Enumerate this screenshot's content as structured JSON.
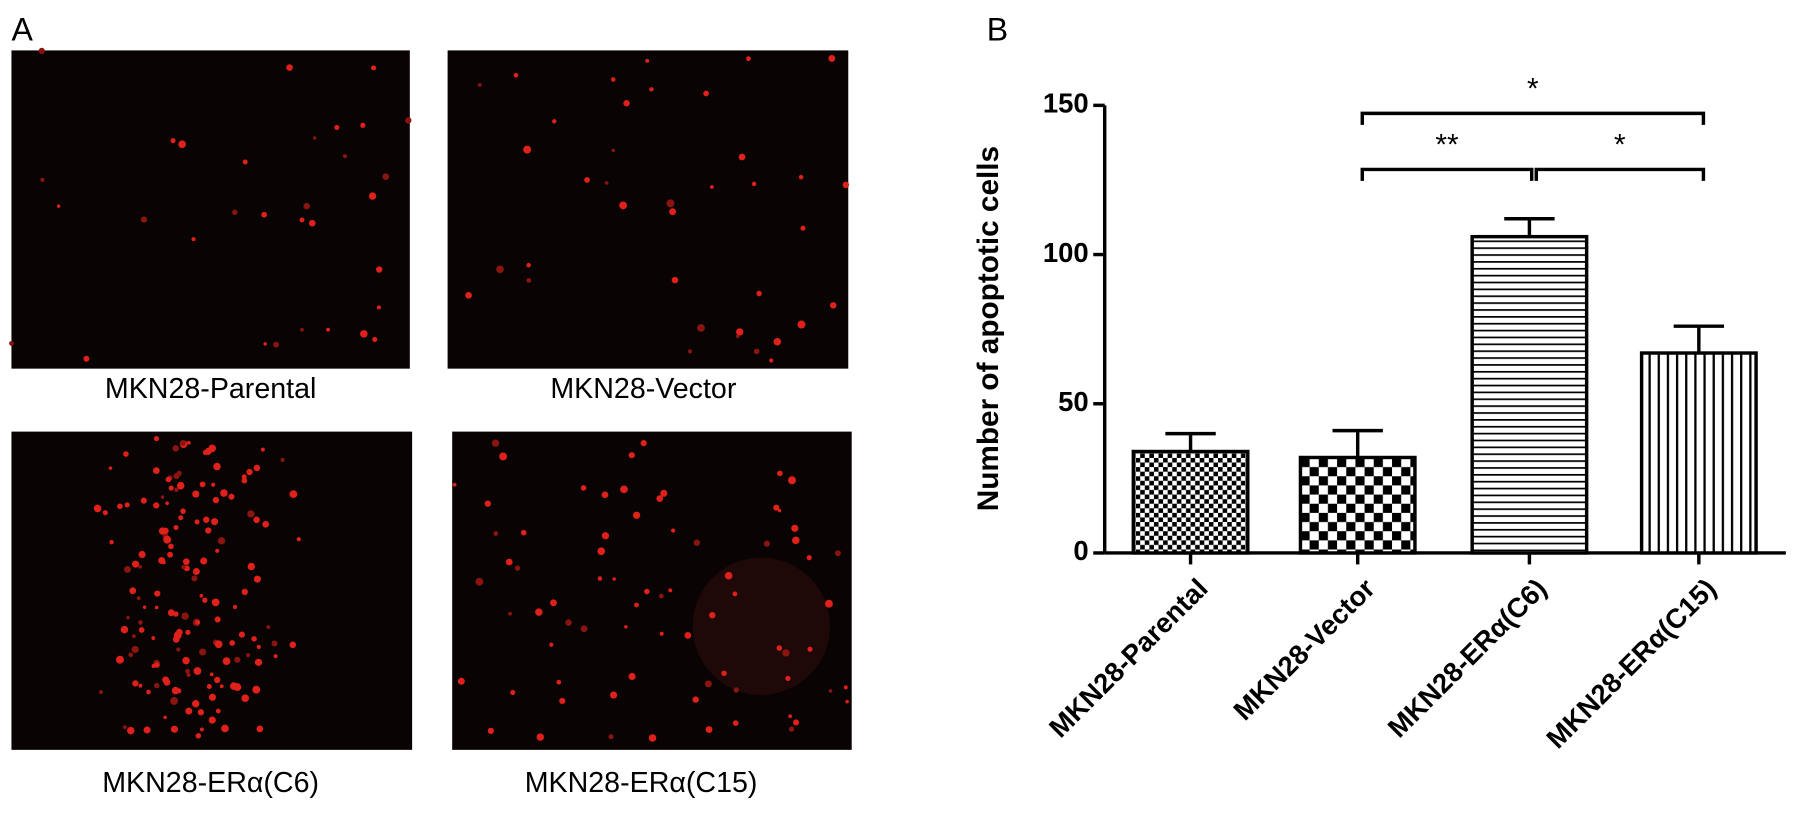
{
  "panel_labels": [
    "A",
    "B"
  ],
  "images": [
    {
      "caption": "MKN28-Parental"
    },
    {
      "caption": "MKN28-Vector"
    },
    {
      "caption": "MKN28-ERα(C6)"
    },
    {
      "caption": "MKN28-ERα(C15)"
    }
  ],
  "chart_data": {
    "type": "bar",
    "y_label": "Number of apoptotic cells",
    "categories": [
      "MKN28-Parental",
      "MKN28-Vector",
      "MKN28-ERα(C6)",
      "MKN28-ERα(C15)"
    ],
    "values": [
      34,
      32,
      106,
      67
    ],
    "errors": [
      6,
      9,
      6,
      9
    ],
    "patterns": [
      "fine-checker",
      "coarse-checker",
      "horizontal-lines",
      "vertical-lines"
    ],
    "color": "#000000",
    "ylim": [
      0,
      150
    ],
    "yticks": [
      0,
      50,
      100,
      150
    ],
    "comparisons": [
      {
        "label": "*",
        "from": "MKN28-Vector",
        "to": "MKN28-ERα(C15)"
      },
      {
        "label": "**",
        "from": "MKN28-Vector",
        "to": "MKN28-ERα(C6)"
      },
      {
        "label": "*",
        "from": "MKN28-ERα(C6)",
        "to": "MKN28-ERα(C15)"
      }
    ]
  }
}
